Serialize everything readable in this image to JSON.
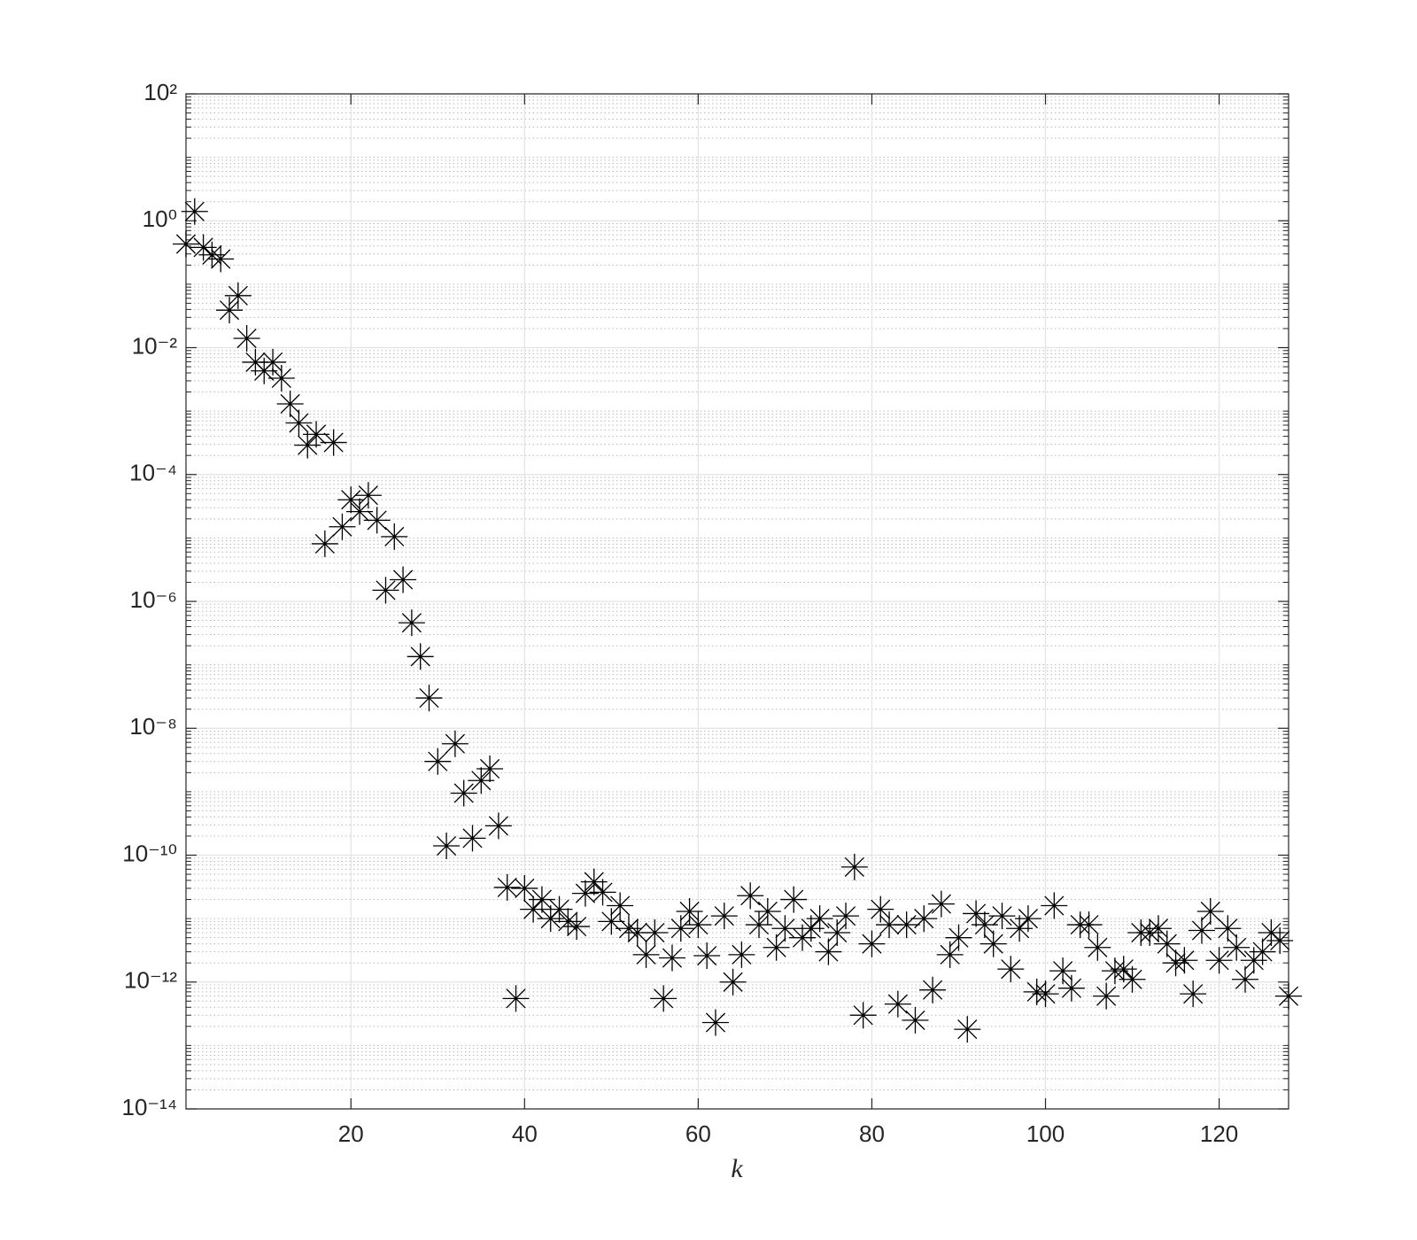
{
  "chart_data": {
    "type": "scatter",
    "xlabel": "k",
    "color": "#000000",
    "marker": "asterisk",
    "ylog": true,
    "grid": true,
    "yminor_grid": true,
    "xlim": [
      1,
      128
    ],
    "ylim": [
      1e-14,
      100
    ],
    "xticks": [
      20,
      40,
      60,
      80,
      100,
      120
    ],
    "yticks": [
      {
        "value": 1e-14,
        "label": "10⁻¹⁴"
      },
      {
        "value": 1e-12,
        "label": "10⁻¹²"
      },
      {
        "value": 1e-10,
        "label": "10⁻¹⁰"
      },
      {
        "value": 1e-08,
        "label": "10⁻⁸"
      },
      {
        "value": 1e-06,
        "label": "10⁻⁶"
      },
      {
        "value": 0.0001,
        "label": "10⁻⁴"
      },
      {
        "value": 0.01,
        "label": "10⁻²"
      },
      {
        "value": 1,
        "label": "10⁰"
      },
      {
        "value": 100,
        "label": "10²"
      }
    ],
    "x": [
      1,
      2,
      3,
      4,
      5,
      6,
      7,
      8,
      9,
      10,
      11,
      12,
      13,
      14,
      15,
      16,
      17,
      18,
      19,
      20,
      21,
      22,
      23,
      24,
      25,
      26,
      27,
      28,
      29,
      30,
      31,
      32,
      33,
      34,
      35,
      36,
      37,
      38,
      39,
      40,
      41,
      42,
      43,
      44,
      45,
      46,
      47,
      48,
      49,
      50,
      51,
      52,
      53,
      54,
      55,
      56,
      57,
      58,
      59,
      60,
      61,
      62,
      63,
      64,
      65,
      66,
      67,
      68,
      69,
      70,
      71,
      72,
      73,
      74,
      75,
      76,
      77,
      78,
      79,
      80,
      81,
      82,
      83,
      84,
      85,
      86,
      87,
      88,
      89,
      90,
      91,
      92,
      93,
      94,
      95,
      96,
      97,
      98,
      99,
      100,
      101,
      102,
      103,
      104,
      105,
      106,
      107,
      108,
      109,
      110,
      111,
      112,
      113,
      114,
      115,
      116,
      117,
      118,
      119,
      120,
      121,
      122,
      123,
      124,
      125,
      126,
      127,
      128
    ],
    "values": [
      0.43,
      1.4,
      0.38,
      0.29,
      0.25,
      0.039,
      0.066,
      0.014,
      0.0059,
      0.0043,
      0.0059,
      0.0033,
      0.0013,
      0.00065,
      0.00029,
      0.00043,
      8.1e-06,
      0.00032,
      1.5e-05,
      4e-05,
      2.6e-05,
      4.7e-05,
      1.9e-05,
      1.5e-06,
      1.05e-05,
      2.2e-06,
      4.6e-07,
      1.35e-07,
      3e-08,
      3e-09,
      1.4e-10,
      5.7e-09,
      9.5e-10,
      1.85e-10,
      1.5e-09,
      2.3e-09,
      2.9e-10,
      3.1e-11,
      5.5e-13,
      3e-11,
      1.4e-11,
      2e-11,
      1e-11,
      1.4e-11,
      9e-12,
      7.5e-12,
      2.5e-11,
      3.8e-11,
      2.6e-11,
      9e-12,
      1.6e-11,
      7e-12,
      6e-12,
      2.7e-12,
      6e-12,
      5.5e-13,
      2.4e-12,
      7e-12,
      1.3e-11,
      8e-12,
      2.6e-12,
      2.3e-13,
      1.1e-11,
      1e-12,
      2.7e-12,
      2.3e-11,
      8e-12,
      1.3e-11,
      3.5e-12,
      7e-12,
      2e-11,
      5e-12,
      7e-12,
      1e-11,
      3e-12,
      6e-12,
      1.1e-11,
      6.5e-11,
      3e-13,
      4e-12,
      1.4e-11,
      8e-12,
      4.5e-13,
      8e-12,
      2.5e-13,
      1e-11,
      7.5e-13,
      1.7e-11,
      2.7e-12,
      5e-12,
      1.8e-13,
      1.2e-11,
      8e-12,
      4e-12,
      1.1e-11,
      1.6e-12,
      7e-12,
      1e-11,
      7e-13,
      6.5e-13,
      1.6e-11,
      1.5e-12,
      8e-13,
      8e-12,
      8e-12,
      3.5e-12,
      6e-13,
      1.5e-12,
      1.6e-12,
      1.1e-12,
      6e-12,
      6e-12,
      7e-12,
      4e-12,
      2e-12,
      2.2e-12,
      6.5e-13,
      6.5e-12,
      1.3e-11,
      2.2e-12,
      7e-12,
      3.5e-12,
      1.1e-12,
      2.2e-12,
      3e-12,
      6e-12,
      4.5e-12,
      6e-13
    ]
  }
}
